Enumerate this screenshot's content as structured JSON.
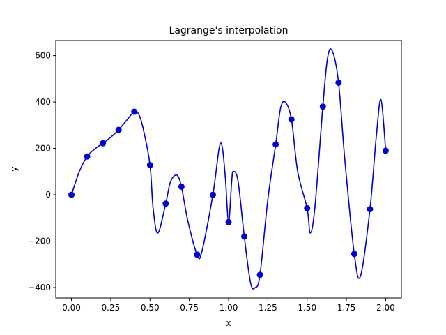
{
  "chart_data": {
    "type": "line",
    "title": "Lagrange's interpolation",
    "xlabel": "x",
    "ylabel": "y",
    "xlim": [
      -0.1,
      2.1
    ],
    "ylim": [
      -445,
      665
    ],
    "x_ticks": [
      "0.00",
      "0.25",
      "0.50",
      "0.75",
      "1.00",
      "1.25",
      "1.50",
      "1.75",
      "2.00"
    ],
    "x_tick_values": [
      0,
      0.25,
      0.5,
      0.75,
      1.0,
      1.25,
      1.5,
      1.75,
      2.0
    ],
    "y_ticks": [
      "−400",
      "−200",
      "0",
      "200",
      "400",
      "600"
    ],
    "y_tick_values": [
      -400,
      -200,
      0,
      200,
      400,
      600
    ],
    "grid": false,
    "color": "#0000cc",
    "points": {
      "x": [
        0.0,
        0.1,
        0.2,
        0.3,
        0.4,
        0.5,
        0.6,
        0.7,
        0.8,
        0.9,
        1.0,
        1.1,
        1.2,
        1.3,
        1.4,
        1.5,
        1.6,
        1.7,
        1.8,
        1.9,
        2.0
      ],
      "y": [
        0,
        165,
        222,
        280,
        358,
        128,
        -38,
        35,
        -258,
        0,
        -118,
        -180,
        -345,
        217,
        325,
        -58,
        380,
        483,
        -255,
        -62,
        190
      ]
    },
    "curve": {
      "x": [
        0.0,
        0.05,
        0.1,
        0.15,
        0.2,
        0.25,
        0.3,
        0.35,
        0.4,
        0.43,
        0.46,
        0.5,
        0.52,
        0.55,
        0.6,
        0.63,
        0.67,
        0.7,
        0.74,
        0.8,
        0.83,
        0.9,
        0.94,
        0.96,
        0.98,
        1.0,
        1.02,
        1.03,
        1.06,
        1.1,
        1.14,
        1.17,
        1.2,
        1.25,
        1.3,
        1.33,
        1.36,
        1.4,
        1.44,
        1.5,
        1.52,
        1.55,
        1.6,
        1.63,
        1.66,
        1.7,
        1.74,
        1.8,
        1.84,
        1.9,
        1.94,
        1.97,
        2.0
      ],
      "y": [
        0,
        100,
        165,
        198,
        222,
        248,
        280,
        320,
        358,
        345,
        275,
        128,
        -60,
        -165,
        -38,
        55,
        85,
        35,
        -110,
        -258,
        -245,
        0,
        200,
        205,
        70,
        -118,
        60,
        100,
        60,
        -180,
        -380,
        -400,
        -345,
        -20,
        217,
        370,
        400,
        325,
        100,
        -58,
        -165,
        -50,
        380,
        590,
        620,
        483,
        150,
        -255,
        -350,
        -62,
        250,
        410,
        190
      ]
    }
  }
}
